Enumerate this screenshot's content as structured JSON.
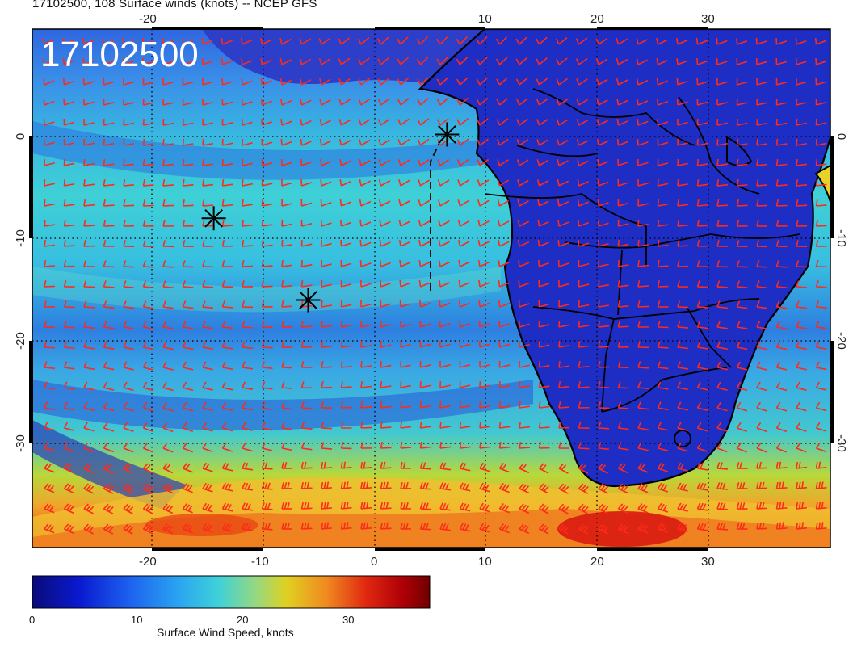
{
  "title": "17102500, 108 Surface winds (knots) -- NCEP GFS",
  "stamp": "17102500",
  "axes": {
    "lon_ticks": [
      "-20",
      "-10",
      "0",
      "10",
      "20",
      "30"
    ],
    "lat_ticks": [
      "0",
      "-10",
      "-20",
      "-30"
    ]
  },
  "colorbar": {
    "title": "Surface Wind Speed, knots",
    "ticks": [
      "0",
      "10",
      "20",
      "30"
    ],
    "range": [
      0,
      38
    ]
  },
  "markers": [
    {
      "name": "star-marker",
      "lon": 6.5,
      "lat": 0.2
    },
    {
      "name": "star-marker",
      "lon": -14.5,
      "lat": -8
    },
    {
      "name": "star-marker",
      "lon": -6,
      "lat": -16
    }
  ],
  "icons": [
    "star-marker-icon",
    "wind-barb-icon"
  ],
  "colors": {
    "barb": "#ff2a1a",
    "land": "#1f2fc8",
    "ocean_mid": "#39c6d8",
    "jet": "#e53a10",
    "coast": "#000000"
  }
}
